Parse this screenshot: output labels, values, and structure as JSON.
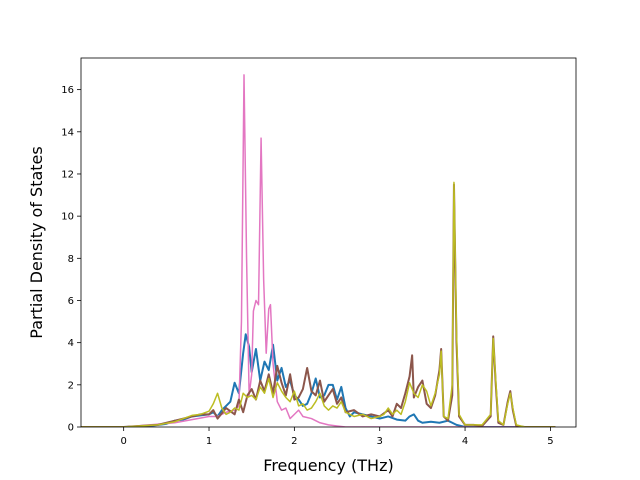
{
  "chart_data": {
    "type": "line",
    "title": "",
    "xlabel": "Frequency (THz)",
    "ylabel": "Partial Density of States",
    "xlim": [
      -0.5,
      5.3
    ],
    "ylim": [
      0,
      17.5
    ],
    "xticks": [
      0,
      1,
      2,
      3,
      4,
      5
    ],
    "xtick_labels": [
      "0",
      "1",
      "2",
      "3",
      "4",
      "5"
    ],
    "yticks": [
      0,
      2,
      4,
      6,
      8,
      10,
      12,
      14,
      16
    ],
    "ytick_labels": [
      "0",
      "2",
      "4",
      "6",
      "8",
      "10",
      "12",
      "14",
      "16"
    ],
    "grid": false,
    "series": [
      {
        "color": "#1f77b4",
        "width": 2,
        "points": [
          [
            -0.5,
            0
          ],
          [
            0,
            0
          ],
          [
            0.3,
            0.05
          ],
          [
            0.5,
            0.15
          ],
          [
            0.6,
            0.3
          ],
          [
            0.7,
            0.35
          ],
          [
            0.8,
            0.5
          ],
          [
            0.9,
            0.55
          ],
          [
            1.0,
            0.6
          ],
          [
            1.05,
            0.7
          ],
          [
            1.1,
            0.5
          ],
          [
            1.15,
            0.8
          ],
          [
            1.2,
            1.0
          ],
          [
            1.25,
            1.2
          ],
          [
            1.3,
            2.1
          ],
          [
            1.35,
            1.6
          ],
          [
            1.4,
            3.5
          ],
          [
            1.43,
            4.4
          ],
          [
            1.47,
            3.8
          ],
          [
            1.5,
            2.6
          ],
          [
            1.55,
            3.7
          ],
          [
            1.6,
            2.2
          ],
          [
            1.65,
            3.1
          ],
          [
            1.7,
            2.7
          ],
          [
            1.75,
            3.9
          ],
          [
            1.8,
            2.2
          ],
          [
            1.85,
            2.8
          ],
          [
            1.9,
            1.9
          ],
          [
            1.95,
            2.2
          ],
          [
            2.0,
            1.5
          ],
          [
            2.05,
            1.3
          ],
          [
            2.1,
            1.0
          ],
          [
            2.15,
            1.1
          ],
          [
            2.2,
            1.6
          ],
          [
            2.25,
            2.3
          ],
          [
            2.3,
            1.4
          ],
          [
            2.35,
            1.5
          ],
          [
            2.4,
            2.0
          ],
          [
            2.45,
            2.0
          ],
          [
            2.5,
            1.3
          ],
          [
            2.55,
            1.9
          ],
          [
            2.6,
            0.9
          ],
          [
            2.65,
            0.5
          ],
          [
            2.7,
            0.7
          ],
          [
            2.8,
            0.6
          ],
          [
            2.9,
            0.5
          ],
          [
            3.0,
            0.4
          ],
          [
            3.1,
            0.5
          ],
          [
            3.2,
            0.35
          ],
          [
            3.3,
            0.3
          ],
          [
            3.35,
            0.5
          ],
          [
            3.4,
            0.6
          ],
          [
            3.45,
            0.3
          ],
          [
            3.5,
            0.2
          ],
          [
            3.6,
            0.25
          ],
          [
            3.7,
            0.2
          ],
          [
            3.8,
            0.3
          ],
          [
            3.85,
            0.2
          ],
          [
            3.9,
            0.1
          ],
          [
            4.0,
            0
          ],
          [
            5.05,
            0
          ]
        ]
      },
      {
        "color": "#e377c2",
        "width": 1.5,
        "points": [
          [
            -0.5,
            0
          ],
          [
            0,
            0
          ],
          [
            0.6,
            0.2
          ],
          [
            0.8,
            0.35
          ],
          [
            1.0,
            0.5
          ],
          [
            1.1,
            0.5
          ],
          [
            1.2,
            0.7
          ],
          [
            1.3,
            0.8
          ],
          [
            1.35,
            1.0
          ],
          [
            1.38,
            5.0
          ],
          [
            1.41,
            16.7
          ],
          [
            1.44,
            8.0
          ],
          [
            1.47,
            1.5
          ],
          [
            1.5,
            2.5
          ],
          [
            1.52,
            5.5
          ],
          [
            1.55,
            6.0
          ],
          [
            1.58,
            5.8
          ],
          [
            1.61,
            13.7
          ],
          [
            1.64,
            7.0
          ],
          [
            1.67,
            3.5
          ],
          [
            1.7,
            5.6
          ],
          [
            1.72,
            5.8
          ],
          [
            1.75,
            3.0
          ],
          [
            1.8,
            1.2
          ],
          [
            1.85,
            0.8
          ],
          [
            1.9,
            0.9
          ],
          [
            1.95,
            0.4
          ],
          [
            2.0,
            0.6
          ],
          [
            2.05,
            0.8
          ],
          [
            2.1,
            0.5
          ],
          [
            2.2,
            0.4
          ],
          [
            2.3,
            0.2
          ],
          [
            2.4,
            0.1
          ],
          [
            2.5,
            0.05
          ],
          [
            2.6,
            0
          ],
          [
            5.05,
            0
          ]
        ]
      },
      {
        "color": "#8c564b",
        "width": 2,
        "points": [
          [
            -0.5,
            0
          ],
          [
            0,
            0
          ],
          [
            0.4,
            0.1
          ],
          [
            0.6,
            0.3
          ],
          [
            0.8,
            0.5
          ],
          [
            0.9,
            0.6
          ],
          [
            1.0,
            0.6
          ],
          [
            1.05,
            0.8
          ],
          [
            1.1,
            0.4
          ],
          [
            1.2,
            0.9
          ],
          [
            1.3,
            0.6
          ],
          [
            1.35,
            1.3
          ],
          [
            1.4,
            0.7
          ],
          [
            1.45,
            1.5
          ],
          [
            1.5,
            1.8
          ],
          [
            1.55,
            1.3
          ],
          [
            1.6,
            2.2
          ],
          [
            1.65,
            1.7
          ],
          [
            1.7,
            2.5
          ],
          [
            1.75,
            1.6
          ],
          [
            1.8,
            2.9
          ],
          [
            1.85,
            2.1
          ],
          [
            1.9,
            1.5
          ],
          [
            1.95,
            2.5
          ],
          [
            2.0,
            1.3
          ],
          [
            2.05,
            1.4
          ],
          [
            2.1,
            1.8
          ],
          [
            2.15,
            2.8
          ],
          [
            2.2,
            1.7
          ],
          [
            2.25,
            1.5
          ],
          [
            2.3,
            2.2
          ],
          [
            2.35,
            1.2
          ],
          [
            2.4,
            1.5
          ],
          [
            2.45,
            1.8
          ],
          [
            2.5,
            1.1
          ],
          [
            2.55,
            1.4
          ],
          [
            2.6,
            0.7
          ],
          [
            2.7,
            0.8
          ],
          [
            2.8,
            0.5
          ],
          [
            2.9,
            0.6
          ],
          [
            3.0,
            0.5
          ],
          [
            3.1,
            0.8
          ],
          [
            3.15,
            0.5
          ],
          [
            3.2,
            1.1
          ],
          [
            3.25,
            0.9
          ],
          [
            3.3,
            1.6
          ],
          [
            3.35,
            2.4
          ],
          [
            3.38,
            3.4
          ],
          [
            3.4,
            1.4
          ],
          [
            3.45,
            1.9
          ],
          [
            3.5,
            2.2
          ],
          [
            3.55,
            1.1
          ],
          [
            3.6,
            0.9
          ],
          [
            3.65,
            1.5
          ],
          [
            3.7,
            2.7
          ],
          [
            3.72,
            3.7
          ],
          [
            3.75,
            0.5
          ],
          [
            3.8,
            0.3
          ],
          [
            3.85,
            1.5
          ],
          [
            3.87,
            11.5
          ],
          [
            3.9,
            4.0
          ],
          [
            3.93,
            0.5
          ],
          [
            4.0,
            0.1
          ],
          [
            4.1,
            0.1
          ],
          [
            4.2,
            0.05
          ],
          [
            4.3,
            0.5
          ],
          [
            4.33,
            4.3
          ],
          [
            4.36,
            2.0
          ],
          [
            4.39,
            0.2
          ],
          [
            4.45,
            0.1
          ],
          [
            4.5,
            1.2
          ],
          [
            4.53,
            1.7
          ],
          [
            4.56,
            0.8
          ],
          [
            4.6,
            0.05
          ],
          [
            4.7,
            0
          ],
          [
            5.05,
            0
          ]
        ]
      },
      {
        "color": "#bcbd22",
        "width": 1.5,
        "points": [
          [
            -0.5,
            0
          ],
          [
            0,
            0
          ],
          [
            0.4,
            0.1
          ],
          [
            0.6,
            0.25
          ],
          [
            0.8,
            0.55
          ],
          [
            0.9,
            0.6
          ],
          [
            1.0,
            0.75
          ],
          [
            1.05,
            1.1
          ],
          [
            1.1,
            1.6
          ],
          [
            1.15,
            0.9
          ],
          [
            1.2,
            0.6
          ],
          [
            1.25,
            0.7
          ],
          [
            1.3,
            0.9
          ],
          [
            1.35,
            0.8
          ],
          [
            1.4,
            1.6
          ],
          [
            1.45,
            1.4
          ],
          [
            1.5,
            1.5
          ],
          [
            1.55,
            1.3
          ],
          [
            1.6,
            1.9
          ],
          [
            1.65,
            1.6
          ],
          [
            1.7,
            2.3
          ],
          [
            1.75,
            1.4
          ],
          [
            1.8,
            2.1
          ],
          [
            1.85,
            1.7
          ],
          [
            1.9,
            1.4
          ],
          [
            1.95,
            1.2
          ],
          [
            2.0,
            1.7
          ],
          [
            2.05,
            1.0
          ],
          [
            2.1,
            1.1
          ],
          [
            2.15,
            0.8
          ],
          [
            2.2,
            0.9
          ],
          [
            2.25,
            1.2
          ],
          [
            2.3,
            1.6
          ],
          [
            2.35,
            1.0
          ],
          [
            2.4,
            0.8
          ],
          [
            2.45,
            1.0
          ],
          [
            2.5,
            0.9
          ],
          [
            2.55,
            1.2
          ],
          [
            2.6,
            0.7
          ],
          [
            2.7,
            0.5
          ],
          [
            2.8,
            0.6
          ],
          [
            2.9,
            0.4
          ],
          [
            3.0,
            0.5
          ],
          [
            3.05,
            0.6
          ],
          [
            3.1,
            0.9
          ],
          [
            3.15,
            0.6
          ],
          [
            3.2,
            0.8
          ],
          [
            3.25,
            0.6
          ],
          [
            3.3,
            1.2
          ],
          [
            3.35,
            2.1
          ],
          [
            3.4,
            1.6
          ],
          [
            3.45,
            1.4
          ],
          [
            3.5,
            2.0
          ],
          [
            3.55,
            1.7
          ],
          [
            3.6,
            1.0
          ],
          [
            3.65,
            1.6
          ],
          [
            3.7,
            2.5
          ],
          [
            3.72,
            3.6
          ],
          [
            3.75,
            0.5
          ],
          [
            3.8,
            0.4
          ],
          [
            3.85,
            2.0
          ],
          [
            3.87,
            11.6
          ],
          [
            3.9,
            4.5
          ],
          [
            3.93,
            0.6
          ],
          [
            4.0,
            0.1
          ],
          [
            4.1,
            0.1
          ],
          [
            4.2,
            0.1
          ],
          [
            4.3,
            0.6
          ],
          [
            4.33,
            4.2
          ],
          [
            4.36,
            2.2
          ],
          [
            4.39,
            0.3
          ],
          [
            4.45,
            0.1
          ],
          [
            4.5,
            1.1
          ],
          [
            4.53,
            1.6
          ],
          [
            4.56,
            0.9
          ],
          [
            4.6,
            0.1
          ],
          [
            4.7,
            0
          ],
          [
            5.05,
            0
          ]
        ]
      }
    ]
  }
}
